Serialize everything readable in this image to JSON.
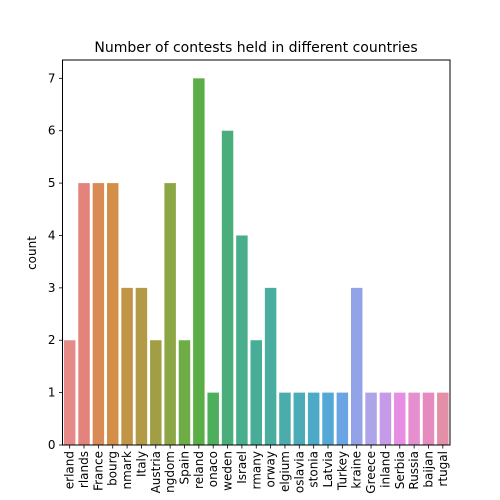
{
  "chart_data": {
    "type": "bar",
    "title": "Number of contests held in different countries",
    "xlabel": "",
    "ylabel": "count",
    "ylim": [
      0,
      7.35
    ],
    "yticks": [
      0,
      1,
      2,
      3,
      4,
      5,
      6,
      7
    ],
    "grid": false,
    "categories": [
      "Switzerland",
      "Netherlands",
      "France",
      "Luxembourg",
      "Denmark",
      "Italy",
      "Austria",
      "United Kingdom",
      "Spain",
      "Ireland",
      "Monaco",
      "Sweden",
      "Israel",
      "Germany",
      "Norway",
      "Belgium",
      "Yugoslavia",
      "Estonia",
      "Latvia",
      "Turkey",
      "Ukraine",
      "Greece",
      "Finland",
      "Serbia",
      "Russia",
      "Azerbaijan",
      "Portugal"
    ],
    "tick_labels": [
      "erland",
      "rlands",
      "France",
      "bourg",
      "nmark",
      "Italy",
      "Austria",
      "ngdom",
      "Spain",
      "reland",
      "onaco",
      "weden",
      "Israel",
      "rmany",
      "orway",
      "elgium",
      "oslavia",
      "stonia",
      "Latvia",
      "Turkey",
      "kraine",
      "Greece",
      "inland",
      "Serbia",
      "Russia",
      "baijan",
      "rtugal"
    ],
    "values": [
      2,
      5,
      5,
      5,
      3,
      3,
      2,
      5,
      2,
      7,
      1,
      6,
      4,
      2,
      3,
      1,
      1,
      1,
      1,
      1,
      3,
      1,
      1,
      1,
      1,
      1,
      1
    ],
    "colors": [
      "#e58a86",
      "#e4837c",
      "#d98b55",
      "#d38e47",
      "#c29446",
      "#b39a46",
      "#a29e46",
      "#8da645",
      "#6eac45",
      "#5bae47",
      "#4daf5c",
      "#4aae7a",
      "#48ae8b",
      "#48ad97",
      "#49ada0",
      "#4aacab",
      "#4babb7",
      "#4daac6",
      "#53a8d6",
      "#6aa4e2",
      "#93a3e7",
      "#aea4e8",
      "#c59ae9",
      "#e58ee3",
      "#e58fcf",
      "#e58bc0",
      "#e28fa7"
    ]
  }
}
